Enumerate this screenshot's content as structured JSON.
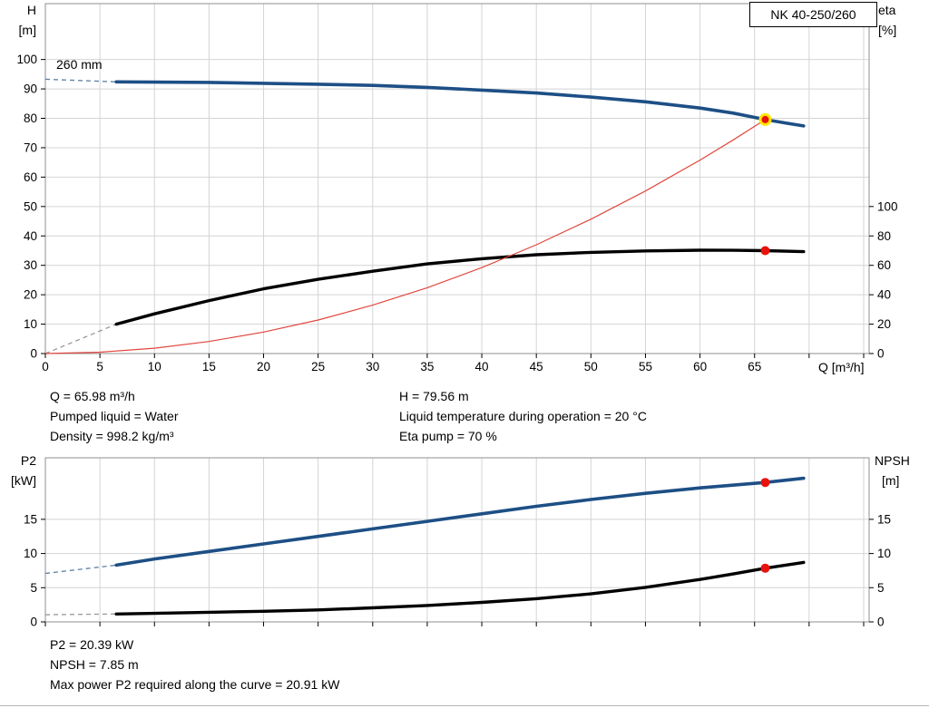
{
  "pump_model": "NK 40-250/260",
  "labels": {
    "h_axis": "H",
    "h_unit": "[m]",
    "eta_axis": "eta",
    "eta_unit": "[%]",
    "q_axis": "Q [m³/h]",
    "p2_axis": "P2",
    "p2_unit": "[kW]",
    "npsh_axis": "NPSH",
    "npsh_unit": "[m]",
    "impeller": "260 mm"
  },
  "info_top_left": [
    "Q = 65.98 m³/h",
    "Pumped liquid = Water",
    "Density = 998.2 kg/m³"
  ],
  "info_top_right": [
    "H = 79.56 m",
    "Liquid temperature during operation = 20 °C",
    "Eta pump = 70 %"
  ],
  "info_bottom": [
    "P2 = 20.39 kW",
    "NPSH = 7.85 m",
    "Max power P2 required along the curve = 20.91 kW"
  ],
  "colors": {
    "curve_blue": "#1d4f85",
    "curve_black": "#000000",
    "system_red": "#e0483e",
    "dot_red": "#e8120c",
    "duty_ring": "#ffe600",
    "dash_blue": "#5b7fa6",
    "dash_gray": "#999999",
    "grid": "#d4d4d4",
    "frame": "#8f8f8f"
  },
  "chart_data": [
    {
      "id": "qh",
      "type": "line",
      "title": "NK 40-250/260",
      "xlabel": "Q [m³/h]",
      "ylabel_left": "H [m]",
      "ylabel_right": "eta [%]",
      "xlim": [
        0,
        75.5
      ],
      "x_ticks": [
        0,
        5,
        10,
        15,
        20,
        25,
        30,
        35,
        40,
        45,
        50,
        55,
        60,
        65,
        70,
        75
      ],
      "x_tick_labels": [
        "0",
        "5",
        "10",
        "15",
        "20",
        "25",
        "30",
        "35",
        "40",
        "45",
        "50",
        "55",
        "60",
        "65",
        "",
        ""
      ],
      "left_ticks": [
        0,
        10,
        20,
        30,
        40,
        50,
        60,
        70,
        80,
        90,
        100
      ],
      "left_lim": [
        0,
        119
      ],
      "right_ticks": [
        0,
        20,
        40,
        60,
        80,
        100
      ],
      "right_lim": [
        0,
        238
      ],
      "grid": true,
      "series": [
        {
          "name": "head-curve-260mm",
          "axis": "left",
          "color_key": "curve_blue",
          "dash_color_key": "dash_blue",
          "width": 3.6,
          "dash": {
            "x": [
              0,
              6.5
            ],
            "y": [
              93.3,
              92.4
            ]
          },
          "x": [
            6.5,
            10,
            15,
            20,
            25,
            30,
            35,
            40,
            45,
            50,
            55,
            60,
            63,
            65.98,
            68,
            69.5
          ],
          "y": [
            92.4,
            92.3,
            92.2,
            91.9,
            91.6,
            91.2,
            90.5,
            89.6,
            88.6,
            87.2,
            85.6,
            83.5,
            81.8,
            79.56,
            78.3,
            77.4
          ]
        },
        {
          "name": "eta-curve",
          "axis": "right",
          "color_key": "curve_black",
          "dash_color_key": "dash_gray",
          "width": 3.4,
          "dash": {
            "x": [
              0,
              6.5
            ],
            "y": [
              0,
              20
            ]
          },
          "x": [
            6.5,
            10,
            15,
            20,
            25,
            30,
            35,
            40,
            45,
            50,
            55,
            60,
            63,
            65.98,
            69.5
          ],
          "y": [
            20,
            27,
            36,
            44,
            50.5,
            56,
            61,
            64.5,
            67.2,
            68.8,
            69.8,
            70.3,
            70.2,
            70,
            69.3
          ]
        },
        {
          "name": "system-curve",
          "axis": "left",
          "color_key": "system_red",
          "width": 1.2,
          "x": [
            0,
            5,
            10,
            15,
            20,
            25,
            30,
            35,
            40,
            45,
            50,
            55,
            60,
            63,
            65.98
          ],
          "y": [
            0,
            0.46,
            1.83,
            4.11,
            7.31,
            11.42,
            16.45,
            22.39,
            29.24,
            37.01,
            45.69,
            55.29,
            65.8,
            72.55,
            79.56
          ]
        }
      ],
      "points": [
        {
          "name": "duty-point",
          "axis": "left",
          "x": 65.98,
          "y": 79.56,
          "r": 5.5,
          "fill_key": "dot_red",
          "ring_key": "duty_ring"
        },
        {
          "name": "eta-point",
          "axis": "right",
          "x": 65.98,
          "y": 70,
          "r": 5,
          "fill_key": "dot_red"
        }
      ]
    },
    {
      "id": "p2npsh",
      "type": "line",
      "xlabel": "",
      "ylabel_left": "P2 [kW]",
      "ylabel_right": "NPSH [m]",
      "xlim": [
        0,
        75.5
      ],
      "x_ticks": [
        0,
        5,
        10,
        15,
        20,
        25,
        30,
        35,
        40,
        45,
        50,
        55,
        60,
        65,
        70,
        75
      ],
      "x_tick_labels": [
        "",
        "",
        "",
        "",
        "",
        "",
        "",
        "",
        "",
        "",
        "",
        "",
        "",
        "",
        "",
        ""
      ],
      "left_ticks": [
        0,
        5,
        10,
        15
      ],
      "left_lim": [
        0,
        24
      ],
      "right_ticks": [
        0,
        5,
        10,
        15
      ],
      "right_lim": [
        0,
        24
      ],
      "grid": true,
      "series": [
        {
          "name": "p2-curve",
          "axis": "left",
          "color_key": "curve_blue",
          "dash_color_key": "dash_blue",
          "width": 3.6,
          "dash": {
            "x": [
              0,
              6.5
            ],
            "y": [
              7.1,
              8.3
            ]
          },
          "x": [
            6.5,
            10,
            15,
            20,
            25,
            30,
            35,
            40,
            45,
            50,
            55,
            60,
            65.98,
            69.5
          ],
          "y": [
            8.3,
            9.2,
            10.3,
            11.4,
            12.5,
            13.6,
            14.7,
            15.8,
            16.9,
            17.9,
            18.8,
            19.6,
            20.39,
            21.0
          ]
        },
        {
          "name": "npsh-curve",
          "axis": "right",
          "color_key": "curve_black",
          "dash_color_key": "dash_gray",
          "width": 3.4,
          "dash": {
            "x": [
              0,
              6.5
            ],
            "y": [
              1.05,
              1.15
            ]
          },
          "x": [
            6.5,
            10,
            15,
            20,
            25,
            30,
            35,
            40,
            45,
            50,
            55,
            60,
            63,
            65.98,
            69.5
          ],
          "y": [
            1.15,
            1.25,
            1.4,
            1.55,
            1.75,
            2.05,
            2.4,
            2.85,
            3.4,
            4.1,
            5.05,
            6.2,
            7.0,
            7.85,
            8.7
          ]
        }
      ],
      "points": [
        {
          "name": "p2-point",
          "axis": "left",
          "x": 65.98,
          "y": 20.39,
          "r": 5,
          "fill_key": "dot_red"
        },
        {
          "name": "npsh-point",
          "axis": "right",
          "x": 65.98,
          "y": 7.85,
          "r": 5,
          "fill_key": "dot_red"
        }
      ]
    }
  ]
}
